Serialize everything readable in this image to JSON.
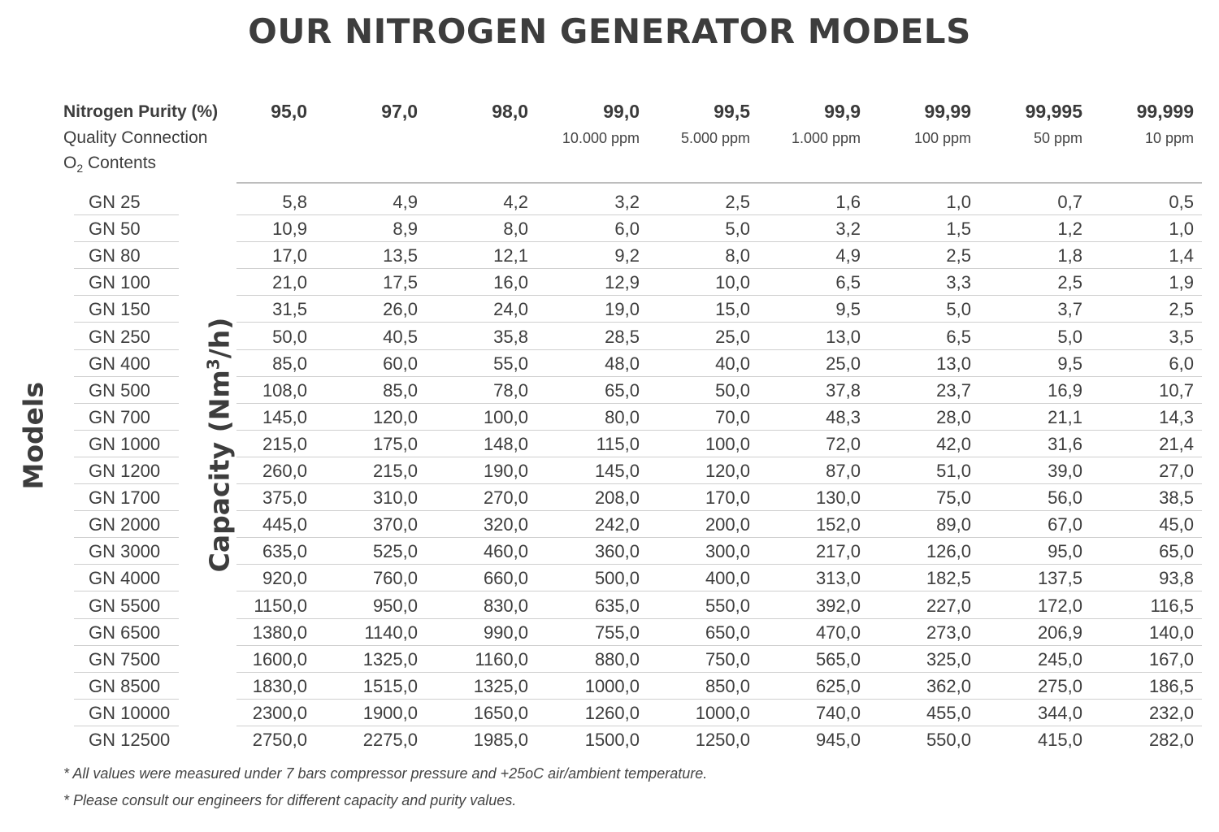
{
  "title": "OUR NITROGEN GENERATOR MODELS",
  "header": {
    "purity_label": "Nitrogen Purity  (%)",
    "quality_label": "Quality Connection",
    "o2_label": "O",
    "o2_sub": "2",
    "o2_suffix": " Contents"
  },
  "columns": [
    {
      "purity": "95,0",
      "ppm": ""
    },
    {
      "purity": "97,0",
      "ppm": ""
    },
    {
      "purity": "98,0",
      "ppm": ""
    },
    {
      "purity": "99,0",
      "ppm": "10.000 ppm"
    },
    {
      "purity": "99,5",
      "ppm": "5.000 ppm"
    },
    {
      "purity": "99,9",
      "ppm": "1.000 ppm"
    },
    {
      "purity": "99,99",
      "ppm": "100 ppm"
    },
    {
      "purity": "99,995",
      "ppm": "50 ppm"
    },
    {
      "purity": "99,999",
      "ppm": "10 ppm"
    }
  ],
  "axis": {
    "models": "Models",
    "capacity": "Capacity (Nm",
    "capacity_sup": "3",
    "capacity_suffix": "/h)"
  },
  "rows": [
    {
      "model": "GN 25",
      "values": [
        "5,8",
        "4,9",
        "4,2",
        "3,2",
        "2,5",
        "1,6",
        "1,0",
        "0,7",
        "0,5"
      ]
    },
    {
      "model": "GN 50",
      "values": [
        "10,9",
        "8,9",
        "8,0",
        "6,0",
        "5,0",
        "3,2",
        "1,5",
        "1,2",
        "1,0"
      ]
    },
    {
      "model": "GN 80",
      "values": [
        "17,0",
        "13,5",
        "12,1",
        "9,2",
        "8,0",
        "4,9",
        "2,5",
        "1,8",
        "1,4"
      ]
    },
    {
      "model": "GN 100",
      "values": [
        "21,0",
        "17,5",
        "16,0",
        "12,9",
        "10,0",
        "6,5",
        "3,3",
        "2,5",
        "1,9"
      ]
    },
    {
      "model": "GN 150",
      "values": [
        "31,5",
        "26,0",
        "24,0",
        "19,0",
        "15,0",
        "9,5",
        "5,0",
        "3,7",
        "2,5"
      ]
    },
    {
      "model": "GN 250",
      "values": [
        "50,0",
        "40,5",
        "35,8",
        "28,5",
        "25,0",
        "13,0",
        "6,5",
        "5,0",
        "3,5"
      ]
    },
    {
      "model": "GN 400",
      "values": [
        "85,0",
        "60,0",
        "55,0",
        "48,0",
        "40,0",
        "25,0",
        "13,0",
        "9,5",
        "6,0"
      ]
    },
    {
      "model": "GN 500",
      "values": [
        "108,0",
        "85,0",
        "78,0",
        "65,0",
        "50,0",
        "37,8",
        "23,7",
        "16,9",
        "10,7"
      ]
    },
    {
      "model": "GN 700",
      "values": [
        "145,0",
        "120,0",
        "100,0",
        "80,0",
        "70,0",
        "48,3",
        "28,0",
        "21,1",
        "14,3"
      ]
    },
    {
      "model": "GN 1000",
      "values": [
        "215,0",
        "175,0",
        "148,0",
        "115,0",
        "100,0",
        "72,0",
        "42,0",
        "31,6",
        "21,4"
      ]
    },
    {
      "model": "GN 1200",
      "values": [
        "260,0",
        "215,0",
        "190,0",
        "145,0",
        "120,0",
        "87,0",
        "51,0",
        "39,0",
        "27,0"
      ]
    },
    {
      "model": "GN 1700",
      "values": [
        "375,0",
        "310,0",
        "270,0",
        "208,0",
        "170,0",
        "130,0",
        "75,0",
        "56,0",
        "38,5"
      ]
    },
    {
      "model": "GN 2000",
      "values": [
        "445,0",
        "370,0",
        "320,0",
        "242,0",
        "200,0",
        "152,0",
        "89,0",
        "67,0",
        "45,0"
      ]
    },
    {
      "model": "GN 3000",
      "values": [
        "635,0",
        "525,0",
        "460,0",
        "360,0",
        "300,0",
        "217,0",
        "126,0",
        "95,0",
        "65,0"
      ]
    },
    {
      "model": "GN 4000",
      "values": [
        "920,0",
        "760,0",
        "660,0",
        "500,0",
        "400,0",
        "313,0",
        "182,5",
        "137,5",
        "93,8"
      ]
    },
    {
      "model": "GN 5500",
      "values": [
        "1150,0",
        "950,0",
        "830,0",
        "635,0",
        "550,0",
        "392,0",
        "227,0",
        "172,0",
        "116,5"
      ]
    },
    {
      "model": "GN 6500",
      "values": [
        "1380,0",
        "1140,0",
        "990,0",
        "755,0",
        "650,0",
        "470,0",
        "273,0",
        "206,9",
        "140,0"
      ]
    },
    {
      "model": "GN 7500",
      "values": [
        "1600,0",
        "1325,0",
        "1160,0",
        "880,0",
        "750,0",
        "565,0",
        "325,0",
        "245,0",
        "167,0"
      ]
    },
    {
      "model": "GN 8500",
      "values": [
        "1830,0",
        "1515,0",
        "1325,0",
        "1000,0",
        "850,0",
        "625,0",
        "362,0",
        "275,0",
        "186,5"
      ]
    },
    {
      "model": "GN 10000",
      "values": [
        "2300,0",
        "1900,0",
        "1650,0",
        "1260,0",
        "1000,0",
        "740,0",
        "455,0",
        "344,0",
        "232,0"
      ]
    },
    {
      "model": "GN 12500",
      "values": [
        "2750,0",
        "2275,0",
        "1985,0",
        "1500,0",
        "1250,0",
        "945,0",
        "550,0",
        "415,0",
        "282,0"
      ]
    }
  ],
  "notes": [
    "* All values were measured under 7 bars compressor pressure and +25oC air/ambient temperature.",
    "* Please consult our engineers for different capacity and purity values."
  ]
}
